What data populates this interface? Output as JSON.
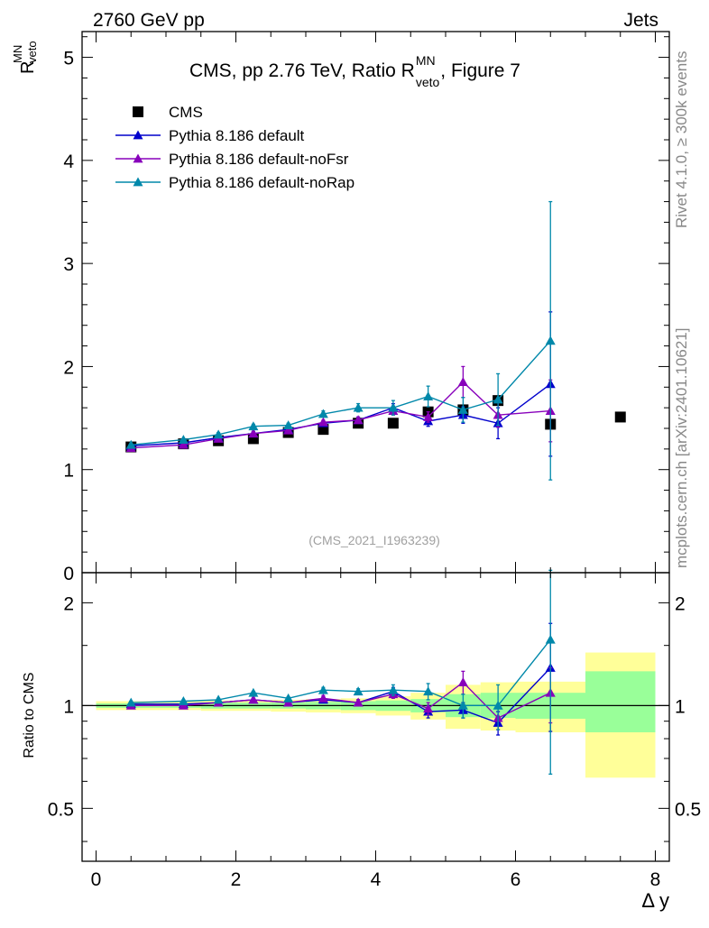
{
  "header": {
    "energy_label": "2760 GeV pp",
    "category_label": "Jets"
  },
  "side_labels": {
    "rivet": "Rivet 4.1.0, ≥ 300k events",
    "mcplots": "mcplots.cern.ch [arXiv:2401.10621]"
  },
  "chart_data": [
    {
      "type": "line",
      "panel": "main",
      "title_prefix": "CMS, pp 2.76 TeV, Ratio R",
      "title_sup": "MN",
      "title_sub": "veto",
      "title_suffix": ", Figure 7",
      "ylabel_main": "R",
      "ylabel_sup": "MN",
      "ylabel_sub": "veto",
      "ylim": [
        0,
        5.25
      ],
      "xlim": [
        -0.2,
        8.2
      ],
      "yticks": [
        "0",
        "1",
        "2",
        "3",
        "4",
        "5"
      ],
      "watermark": "(CMS_2021_I1963239)",
      "legend_position": "top-left",
      "series": [
        {
          "name": "CMS",
          "color": "#000000",
          "marker": "square",
          "x": [
            0.5,
            1.25,
            1.75,
            2.25,
            2.75,
            3.25,
            3.75,
            4.25,
            4.75,
            5.25,
            5.75,
            6.5,
            7.5
          ],
          "y": [
            1.22,
            1.25,
            1.28,
            1.3,
            1.36,
            1.39,
            1.45,
            1.45,
            1.56,
            1.58,
            1.67,
            1.44,
            1.51
          ]
        },
        {
          "name": "Pythia 8.186 default",
          "color": "#0000cc",
          "marker": "triangle",
          "x": [
            0.5,
            1.25,
            1.75,
            2.25,
            2.75,
            3.25,
            3.75,
            4.25,
            4.75,
            5.25,
            5.75,
            6.5
          ],
          "y": [
            1.23,
            1.26,
            1.31,
            1.35,
            1.39,
            1.45,
            1.48,
            1.6,
            1.47,
            1.53,
            1.45,
            1.83
          ],
          "err": [
            0.01,
            0.01,
            0.01,
            0.02,
            0.02,
            0.02,
            0.03,
            0.04,
            0.05,
            0.08,
            0.15,
            0.7
          ]
        },
        {
          "name": "Pythia 8.186 default-noFsr",
          "color": "#8800bb",
          "marker": "triangle",
          "x": [
            0.5,
            1.25,
            1.75,
            2.25,
            2.75,
            3.25,
            3.75,
            4.25,
            4.75,
            5.25,
            5.75,
            6.5
          ],
          "y": [
            1.21,
            1.24,
            1.3,
            1.35,
            1.38,
            1.46,
            1.48,
            1.57,
            1.51,
            1.85,
            1.53,
            1.57
          ],
          "err": [
            0.01,
            0.01,
            0.01,
            0.02,
            0.02,
            0.02,
            0.03,
            0.04,
            0.05,
            0.15,
            0.12,
            0.3
          ]
        },
        {
          "name": "Pythia 8.186 default-noRap",
          "color": "#0088aa",
          "marker": "triangle",
          "x": [
            0.5,
            1.25,
            1.75,
            2.25,
            2.75,
            3.25,
            3.75,
            4.25,
            4.75,
            5.25,
            5.75,
            6.5
          ],
          "y": [
            1.24,
            1.29,
            1.34,
            1.42,
            1.43,
            1.54,
            1.6,
            1.6,
            1.71,
            1.58,
            1.68,
            2.25
          ],
          "err": [
            0.01,
            0.01,
            0.02,
            0.02,
            0.02,
            0.03,
            0.04,
            0.07,
            0.1,
            0.12,
            0.25,
            1.35
          ]
        }
      ]
    },
    {
      "type": "line",
      "panel": "ratio",
      "ylabel": "Ratio to CMS",
      "xlabel": "Δ y",
      "ylim": [
        0.35,
        2.45
      ],
      "log_y": true,
      "xlim": [
        -0.2,
        8.2
      ],
      "xticks": [
        "0",
        "2",
        "4",
        "6",
        "8"
      ],
      "yticks": [
        "0.5",
        "1",
        "2"
      ],
      "reference_line": 1,
      "bands": [
        {
          "x0": 0.0,
          "x1": 1.0,
          "inner": [
            0.985,
            1.015
          ],
          "outer": [
            0.97,
            1.03
          ]
        },
        {
          "x0": 1.0,
          "x1": 1.5,
          "inner": [
            0.985,
            1.015
          ],
          "outer": [
            0.97,
            1.03
          ]
        },
        {
          "x0": 1.5,
          "x1": 2.0,
          "inner": [
            0.98,
            1.02
          ],
          "outer": [
            0.965,
            1.035
          ]
        },
        {
          "x0": 2.0,
          "x1": 2.5,
          "inner": [
            0.98,
            1.02
          ],
          "outer": [
            0.965,
            1.035
          ]
        },
        {
          "x0": 2.5,
          "x1": 3.0,
          "inner": [
            0.98,
            1.02
          ],
          "outer": [
            0.96,
            1.04
          ]
        },
        {
          "x0": 3.0,
          "x1": 3.5,
          "inner": [
            0.975,
            1.025
          ],
          "outer": [
            0.955,
            1.045
          ]
        },
        {
          "x0": 3.5,
          "x1": 4.0,
          "inner": [
            0.97,
            1.03
          ],
          "outer": [
            0.95,
            1.05
          ]
        },
        {
          "x0": 4.0,
          "x1": 4.5,
          "inner": [
            0.965,
            1.035
          ],
          "outer": [
            0.935,
            1.065
          ]
        },
        {
          "x0": 4.5,
          "x1": 5.0,
          "inner": [
            0.955,
            1.045
          ],
          "outer": [
            0.91,
            1.09
          ]
        },
        {
          "x0": 5.0,
          "x1": 5.5,
          "inner": [
            0.925,
            1.08
          ],
          "outer": [
            0.855,
            1.15
          ]
        },
        {
          "x0": 5.5,
          "x1": 6.0,
          "inner": [
            0.92,
            1.09
          ],
          "outer": [
            0.845,
            1.17
          ]
        },
        {
          "x0": 6.0,
          "x1": 7.0,
          "inner": [
            0.915,
            1.09
          ],
          "outer": [
            0.835,
            1.175
          ]
        },
        {
          "x0": 7.0,
          "x1": 8.0,
          "inner": [
            0.835,
            1.26
          ],
          "outer": [
            0.615,
            1.43
          ]
        }
      ],
      "series": [
        {
          "name": "Pythia 8.186 default",
          "color": "#0000cc",
          "x": [
            0.5,
            1.25,
            1.75,
            2.25,
            2.75,
            3.25,
            3.75,
            4.25,
            4.75,
            5.25,
            5.75,
            6.5
          ],
          "y": [
            1.01,
            1.01,
            1.02,
            1.04,
            1.02,
            1.04,
            1.02,
            1.1,
            0.96,
            0.97,
            0.89,
            1.29
          ],
          "err": [
            0.01,
            0.01,
            0.01,
            0.01,
            0.01,
            0.02,
            0.02,
            0.03,
            0.04,
            0.05,
            0.07,
            0.45
          ]
        },
        {
          "name": "Pythia 8.186 default-noFsr",
          "color": "#8800bb",
          "x": [
            0.5,
            1.25,
            1.75,
            2.25,
            2.75,
            3.25,
            3.75,
            4.25,
            4.75,
            5.25,
            5.75,
            6.5
          ],
          "y": [
            1.0,
            1.0,
            1.02,
            1.04,
            1.02,
            1.05,
            1.02,
            1.08,
            0.98,
            1.17,
            0.92,
            1.09
          ],
          "err": [
            0.01,
            0.01,
            0.01,
            0.01,
            0.01,
            0.02,
            0.02,
            0.03,
            0.04,
            0.09,
            0.07,
            0.2
          ]
        },
        {
          "name": "Pythia 8.186 default-noRap",
          "color": "#0088aa",
          "x": [
            0.5,
            1.25,
            1.75,
            2.25,
            2.75,
            3.25,
            3.75,
            4.25,
            4.75,
            5.25,
            5.75,
            6.5
          ],
          "y": [
            1.02,
            1.03,
            1.04,
            1.09,
            1.05,
            1.11,
            1.1,
            1.11,
            1.1,
            1.0,
            1.0,
            1.56
          ],
          "err": [
            0.01,
            0.01,
            0.01,
            0.01,
            0.01,
            0.02,
            0.02,
            0.04,
            0.06,
            0.08,
            0.15,
            0.93
          ]
        }
      ]
    }
  ]
}
